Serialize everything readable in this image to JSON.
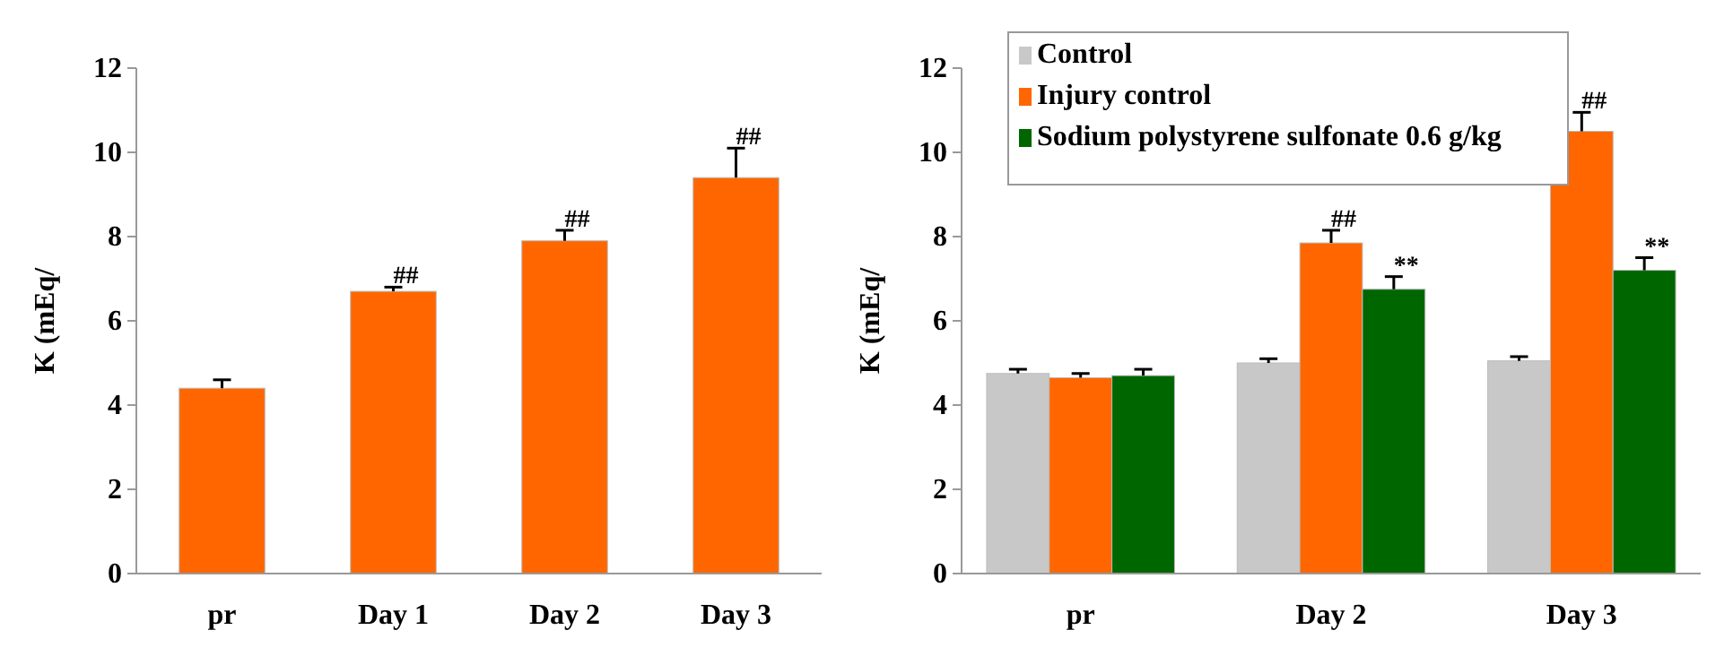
{
  "chart_data": [
    {
      "type": "bar",
      "ylabel": "K (mEq/",
      "categories": [
        "pr",
        "Day 1",
        "Day 2",
        "Day 3"
      ],
      "values": [
        4.4,
        6.7,
        7.9,
        9.4
      ],
      "errors": [
        0.2,
        0.1,
        0.25,
        0.7
      ],
      "color": "#ff6600",
      "ylim": [
        0,
        12
      ],
      "yticks": [
        0,
        2,
        4,
        6,
        8,
        10,
        12
      ],
      "grid": false,
      "legend": false,
      "annotations": [
        {
          "text": "##",
          "x": "Day 1",
          "y": 6.7
        },
        {
          "text": "##",
          "x": "Day 2",
          "y": 7.9
        },
        {
          "text": "##",
          "x": "Day 3",
          "y": 9.4
        }
      ]
    },
    {
      "type": "bar",
      "ylabel": "K (mEq/",
      "categories": [
        "pr",
        "Day 2",
        "Day 3"
      ],
      "series": [
        {
          "name": "Control",
          "color": "#c8c8c8",
          "values": [
            4.75,
            5.0,
            5.05
          ],
          "errors": [
            0.1,
            0.1,
            0.1
          ]
        },
        {
          "name": "Injury control",
          "color": "#ff6600",
          "values": [
            4.65,
            7.85,
            10.5
          ],
          "errors": [
            0.1,
            0.3,
            0.45
          ]
        },
        {
          "name": "Sodium polystyrene sulfonate 0.6 g/kg",
          "color": "#006600",
          "values": [
            4.7,
            6.75,
            7.2
          ],
          "errors": [
            0.15,
            0.3,
            0.3
          ]
        }
      ],
      "ylim": [
        0,
        12
      ],
      "yticks": [
        0,
        2,
        4,
        6,
        8,
        10,
        12
      ],
      "grid": false,
      "legend": "top left",
      "annotations": [
        {
          "text": "##",
          "x": "Day 2",
          "y": 7.85
        },
        "**",
        {
          "text": "##",
          "x": "Day 3",
          "y": 10.5
        },
        "**"
      ]
    }
  ]
}
